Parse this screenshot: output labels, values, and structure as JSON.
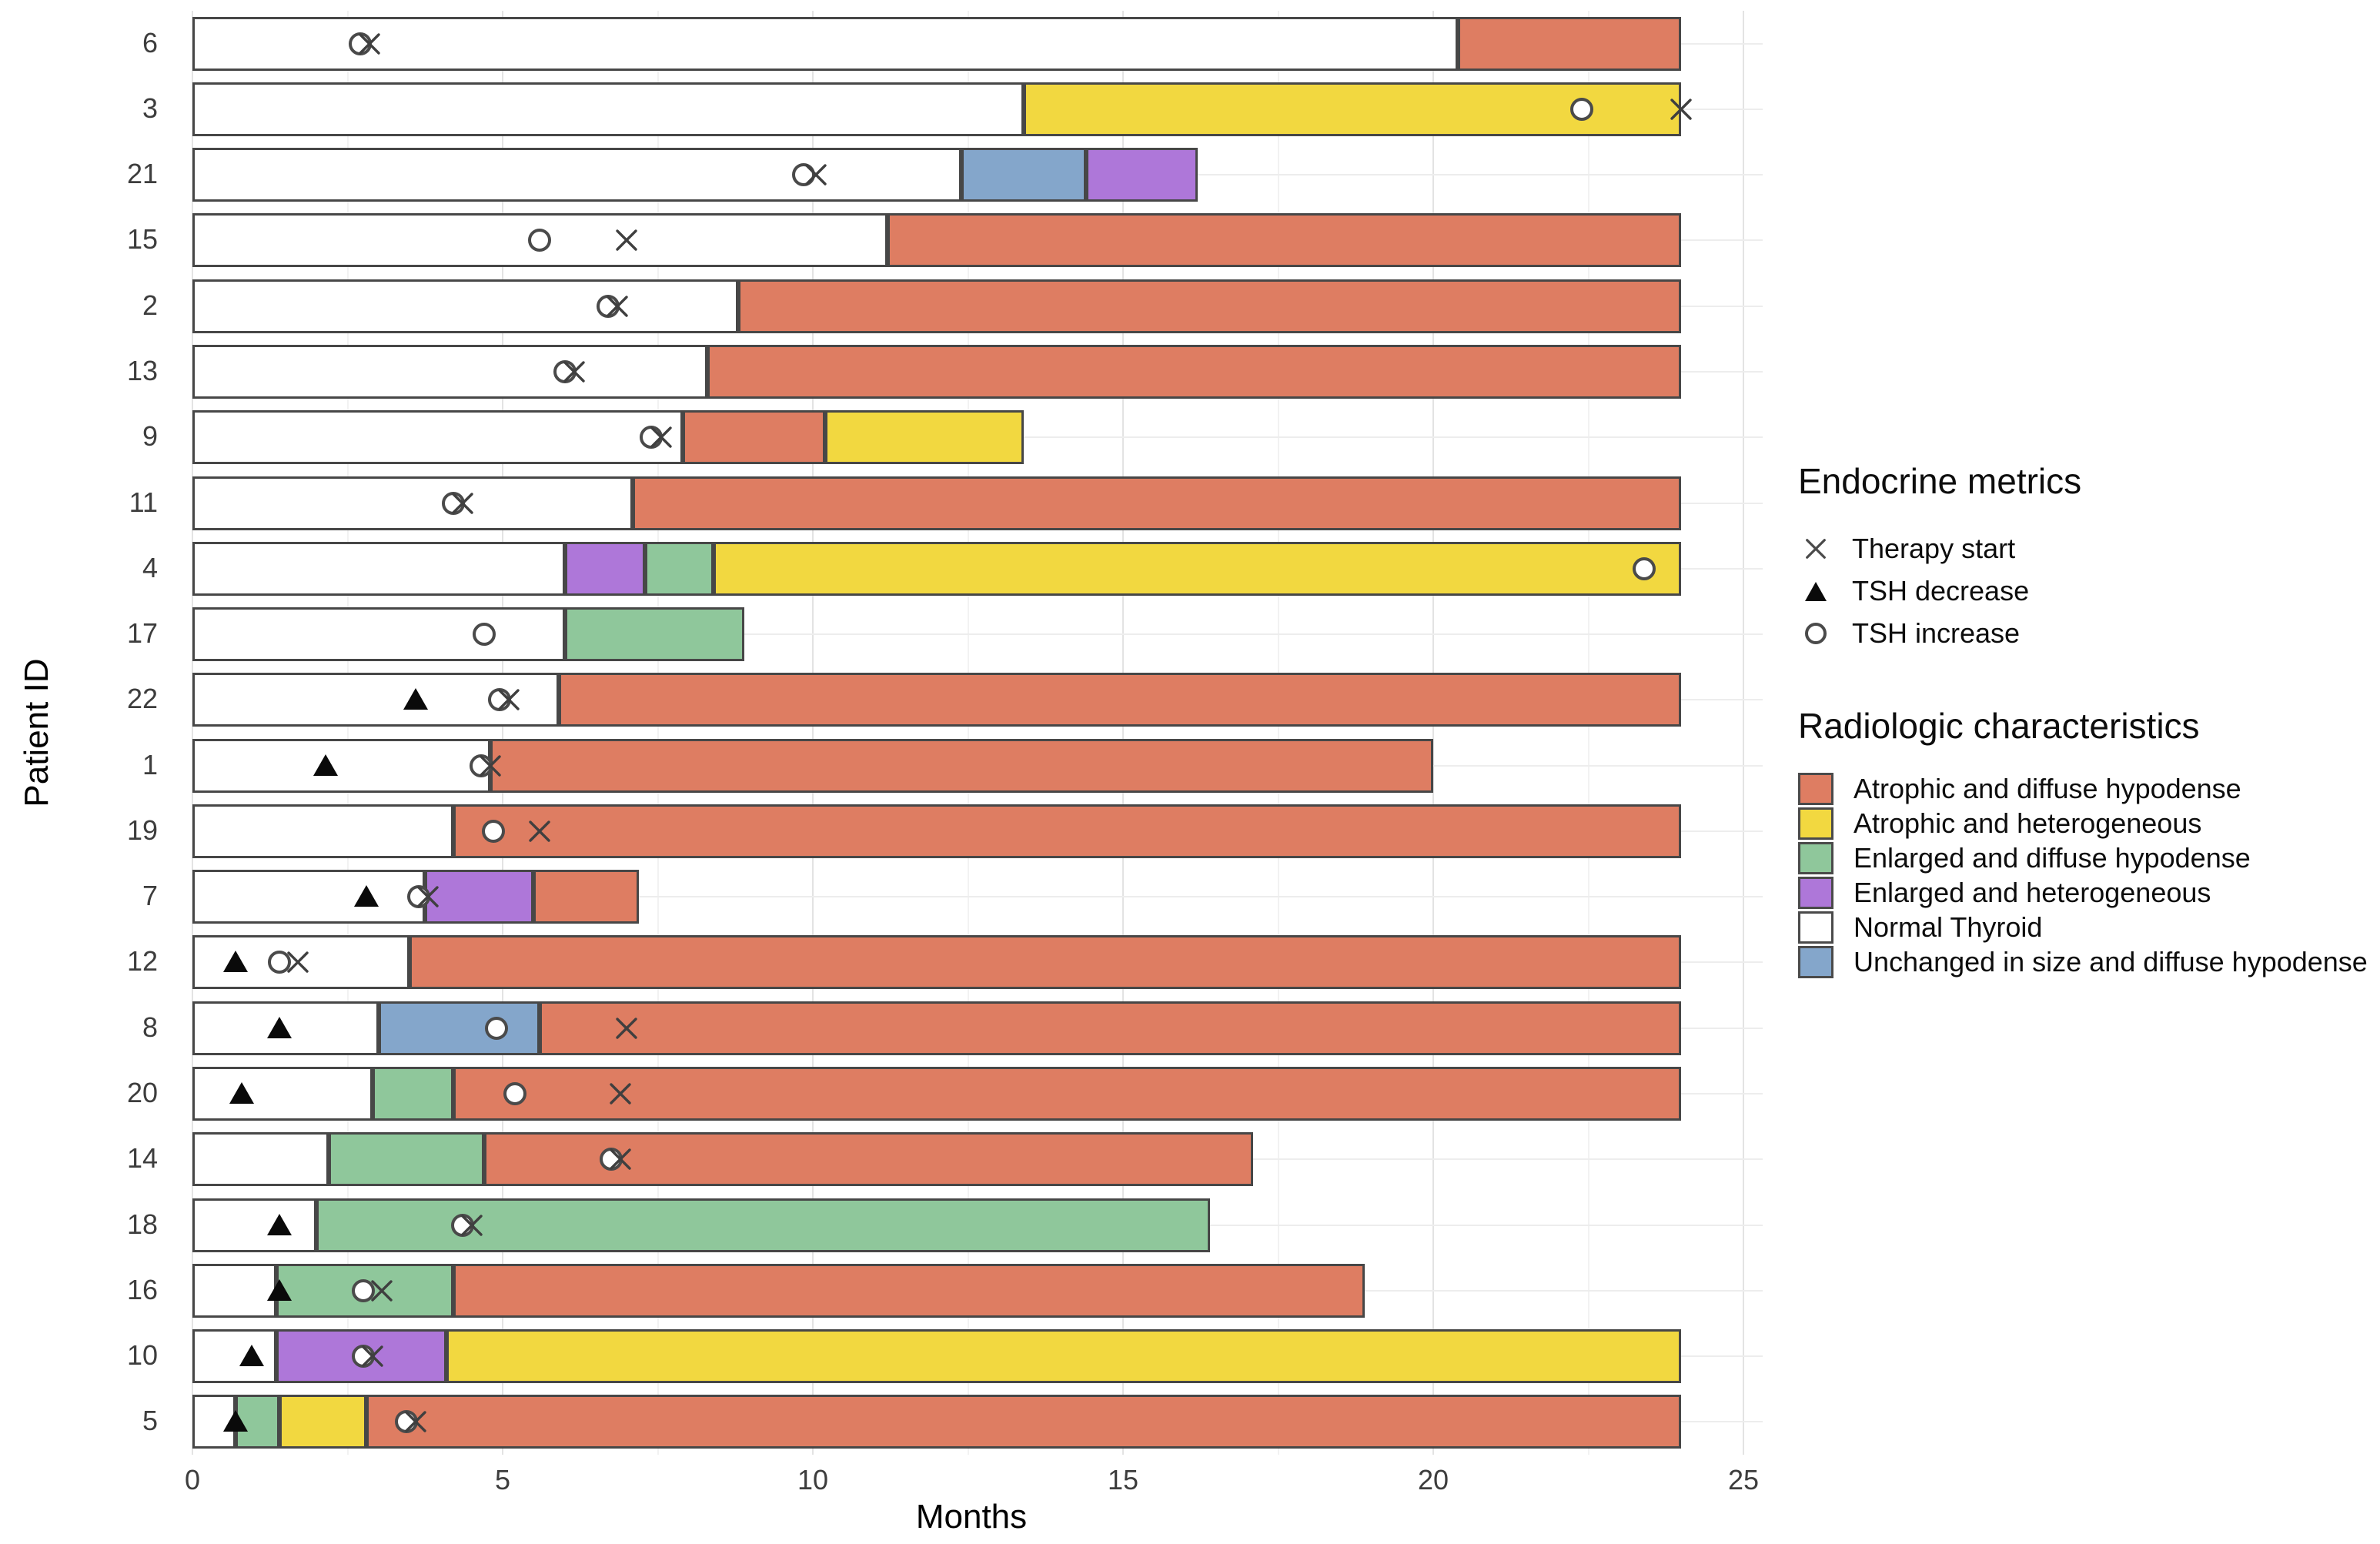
{
  "legend_endocrine": {
    "title": "Endocrine metrics",
    "items": [
      {
        "symbol": "x",
        "label": "Therapy start"
      },
      {
        "symbol": "triangle",
        "label": "TSH decrease"
      },
      {
        "symbol": "circle",
        "label": "TSH increase"
      }
    ]
  },
  "legend_radiologic": {
    "title": "Radiologic characteristics",
    "items": [
      {
        "key": "atrophic_diffuse",
        "label": "Atrophic and diffuse hypodense"
      },
      {
        "key": "atrophic_hetero",
        "label": "Atrophic and heterogeneous"
      },
      {
        "key": "enlarged_diffuse",
        "label": "Enlarged and diffuse hypodense"
      },
      {
        "key": "enlarged_hetero",
        "label": "Enlarged and heterogeneous"
      },
      {
        "key": "normal",
        "label": "Normal Thyroid"
      },
      {
        "key": "unchanged_diffuse",
        "label": "Unchanged in size and diffuse hypodense"
      }
    ]
  },
  "chart_data": {
    "type": "bar",
    "variant": "horizontal_stacked_swimmer",
    "title": "",
    "xlabel": "Months",
    "ylabel": "Patient ID",
    "xlim": [
      0,
      25.3
    ],
    "xticks": [
      0,
      5,
      10,
      15,
      20,
      25
    ],
    "minor_tick_step": 2.5,
    "grid": true,
    "legend_position": "right",
    "colors": {
      "atrophic_diffuse": "#DE7D62",
      "atrophic_hetero": "#F2D840",
      "enlarged_diffuse": "#8FC79B",
      "enlarged_hetero": "#AE77D9",
      "normal": "#FFFFFF",
      "unchanged_diffuse": "#84A6CB"
    },
    "marker_types": {
      "therapy_start": "x-cross",
      "tsh_decrease": "filled-black-triangle",
      "tsh_increase": "open-white-circle"
    },
    "patients": [
      {
        "id": "6",
        "segments": [
          {
            "k": "normal",
            "s": 0,
            "e": 20.4
          },
          {
            "k": "atrophic_diffuse",
            "s": 20.4,
            "e": 24
          }
        ],
        "markers": [
          {
            "t": "tsh_increase",
            "x": 2.7
          },
          {
            "t": "therapy_start",
            "x": 2.85
          }
        ]
      },
      {
        "id": "3",
        "segments": [
          {
            "k": "normal",
            "s": 0,
            "e": 13.4
          },
          {
            "k": "atrophic_hetero",
            "s": 13.4,
            "e": 24
          }
        ],
        "markers": [
          {
            "t": "tsh_increase",
            "x": 22.4
          },
          {
            "t": "therapy_start",
            "x": 24
          }
        ]
      },
      {
        "id": "21",
        "segments": [
          {
            "k": "normal",
            "s": 0,
            "e": 12.4
          },
          {
            "k": "unchanged_diffuse",
            "s": 12.4,
            "e": 14.4
          },
          {
            "k": "enlarged_hetero",
            "s": 14.4,
            "e": 16.2
          }
        ],
        "markers": [
          {
            "t": "tsh_increase",
            "x": 9.85
          },
          {
            "t": "therapy_start",
            "x": 10.05
          }
        ]
      },
      {
        "id": "15",
        "segments": [
          {
            "k": "normal",
            "s": 0,
            "e": 11.2
          },
          {
            "k": "atrophic_diffuse",
            "s": 11.2,
            "e": 24
          }
        ],
        "markers": [
          {
            "t": "tsh_increase",
            "x": 5.6
          },
          {
            "t": "therapy_start",
            "x": 7.0
          }
        ]
      },
      {
        "id": "2",
        "segments": [
          {
            "k": "normal",
            "s": 0,
            "e": 8.8
          },
          {
            "k": "atrophic_diffuse",
            "s": 8.8,
            "e": 24
          }
        ],
        "markers": [
          {
            "t": "tsh_increase",
            "x": 6.7
          },
          {
            "t": "therapy_start",
            "x": 6.85
          }
        ]
      },
      {
        "id": "13",
        "segments": [
          {
            "k": "normal",
            "s": 0,
            "e": 8.3
          },
          {
            "k": "atrophic_diffuse",
            "s": 8.3,
            "e": 24
          }
        ],
        "markers": [
          {
            "t": "tsh_increase",
            "x": 6.0
          },
          {
            "t": "therapy_start",
            "x": 6.15
          }
        ]
      },
      {
        "id": "9",
        "segments": [
          {
            "k": "normal",
            "s": 0,
            "e": 7.9
          },
          {
            "k": "atrophic_diffuse",
            "s": 7.9,
            "e": 10.2
          },
          {
            "k": "atrophic_hetero",
            "s": 10.2,
            "e": 13.4
          }
        ],
        "markers": [
          {
            "t": "tsh_increase",
            "x": 7.4
          },
          {
            "t": "therapy_start",
            "x": 7.55
          }
        ]
      },
      {
        "id": "11",
        "segments": [
          {
            "k": "normal",
            "s": 0,
            "e": 7.1
          },
          {
            "k": "atrophic_diffuse",
            "s": 7.1,
            "e": 24
          }
        ],
        "markers": [
          {
            "t": "tsh_increase",
            "x": 4.2
          },
          {
            "t": "therapy_start",
            "x": 4.35
          }
        ]
      },
      {
        "id": "4",
        "segments": [
          {
            "k": "normal",
            "s": 0,
            "e": 6.0
          },
          {
            "k": "enlarged_hetero",
            "s": 6.0,
            "e": 7.3
          },
          {
            "k": "enlarged_diffuse",
            "s": 7.3,
            "e": 8.4
          },
          {
            "k": "atrophic_hetero",
            "s": 8.4,
            "e": 24
          }
        ],
        "markers": [
          {
            "t": "tsh_increase",
            "x": 23.4
          }
        ]
      },
      {
        "id": "17",
        "segments": [
          {
            "k": "normal",
            "s": 0,
            "e": 6.0
          },
          {
            "k": "enlarged_diffuse",
            "s": 6.0,
            "e": 8.9
          }
        ],
        "markers": [
          {
            "t": "tsh_increase",
            "x": 4.7
          }
        ]
      },
      {
        "id": "22",
        "segments": [
          {
            "k": "normal",
            "s": 0,
            "e": 5.9
          },
          {
            "k": "atrophic_diffuse",
            "s": 5.9,
            "e": 24
          }
        ],
        "markers": [
          {
            "t": "tsh_decrease",
            "x": 3.6
          },
          {
            "t": "tsh_increase",
            "x": 4.95
          },
          {
            "t": "therapy_start",
            "x": 5.1
          }
        ]
      },
      {
        "id": "1",
        "segments": [
          {
            "k": "normal",
            "s": 0,
            "e": 4.8
          },
          {
            "k": "atrophic_diffuse",
            "s": 4.8,
            "e": 20.0
          }
        ],
        "markers": [
          {
            "t": "tsh_decrease",
            "x": 2.15
          },
          {
            "t": "tsh_increase",
            "x": 4.65
          },
          {
            "t": "therapy_start",
            "x": 4.8
          }
        ]
      },
      {
        "id": "19",
        "segments": [
          {
            "k": "normal",
            "s": 0,
            "e": 4.2
          },
          {
            "k": "atrophic_diffuse",
            "s": 4.2,
            "e": 24
          }
        ],
        "markers": [
          {
            "t": "tsh_increase",
            "x": 4.85
          },
          {
            "t": "therapy_start",
            "x": 5.6
          }
        ]
      },
      {
        "id": "7",
        "segments": [
          {
            "k": "normal",
            "s": 0,
            "e": 3.75
          },
          {
            "k": "enlarged_hetero",
            "s": 3.75,
            "e": 5.5
          },
          {
            "k": "atrophic_diffuse",
            "s": 5.5,
            "e": 7.2
          }
        ],
        "markers": [
          {
            "t": "tsh_decrease",
            "x": 2.8
          },
          {
            "t": "tsh_increase",
            "x": 3.65
          },
          {
            "t": "therapy_start",
            "x": 3.8
          }
        ]
      },
      {
        "id": "12",
        "segments": [
          {
            "k": "normal",
            "s": 0,
            "e": 3.5
          },
          {
            "k": "atrophic_diffuse",
            "s": 3.5,
            "e": 24
          }
        ],
        "markers": [
          {
            "t": "tsh_decrease",
            "x": 0.7
          },
          {
            "t": "tsh_increase",
            "x": 1.4
          },
          {
            "t": "therapy_start",
            "x": 1.7
          }
        ]
      },
      {
        "id": "8",
        "segments": [
          {
            "k": "normal",
            "s": 0,
            "e": 3.0
          },
          {
            "k": "unchanged_diffuse",
            "s": 3.0,
            "e": 5.6
          },
          {
            "k": "atrophic_diffuse",
            "s": 5.6,
            "e": 24
          }
        ],
        "markers": [
          {
            "t": "tsh_decrease",
            "x": 1.4
          },
          {
            "t": "tsh_increase",
            "x": 4.9
          },
          {
            "t": "therapy_start",
            "x": 7.0
          }
        ]
      },
      {
        "id": "20",
        "segments": [
          {
            "k": "normal",
            "s": 0,
            "e": 2.9
          },
          {
            "k": "enlarged_diffuse",
            "s": 2.9,
            "e": 4.2
          },
          {
            "k": "atrophic_diffuse",
            "s": 4.2,
            "e": 24
          }
        ],
        "markers": [
          {
            "t": "tsh_decrease",
            "x": 0.8
          },
          {
            "t": "tsh_increase",
            "x": 5.2
          },
          {
            "t": "therapy_start",
            "x": 6.9
          }
        ]
      },
      {
        "id": "14",
        "segments": [
          {
            "k": "normal",
            "s": 0,
            "e": 2.2
          },
          {
            "k": "enlarged_diffuse",
            "s": 2.2,
            "e": 4.7
          },
          {
            "k": "atrophic_diffuse",
            "s": 4.7,
            "e": 17.1
          }
        ],
        "markers": [
          {
            "t": "tsh_increase",
            "x": 6.75
          },
          {
            "t": "therapy_start",
            "x": 6.9
          }
        ]
      },
      {
        "id": "18",
        "segments": [
          {
            "k": "normal",
            "s": 0,
            "e": 2.0
          },
          {
            "k": "enlarged_diffuse",
            "s": 2.0,
            "e": 16.4
          }
        ],
        "markers": [
          {
            "t": "tsh_decrease",
            "x": 1.4
          },
          {
            "t": "tsh_increase",
            "x": 4.35
          },
          {
            "t": "therapy_start",
            "x": 4.5
          }
        ]
      },
      {
        "id": "16",
        "segments": [
          {
            "k": "normal",
            "s": 0,
            "e": 1.35
          },
          {
            "k": "enlarged_diffuse",
            "s": 1.35,
            "e": 4.2
          },
          {
            "k": "atrophic_diffuse",
            "s": 4.2,
            "e": 18.9
          }
        ],
        "markers": [
          {
            "t": "tsh_decrease",
            "x": 1.4
          },
          {
            "t": "tsh_increase",
            "x": 2.75
          },
          {
            "t": "therapy_start",
            "x": 3.05
          }
        ]
      },
      {
        "id": "10",
        "segments": [
          {
            "k": "normal",
            "s": 0,
            "e": 1.35
          },
          {
            "k": "enlarged_hetero",
            "s": 1.35,
            "e": 4.1
          },
          {
            "k": "atrophic_hetero",
            "s": 4.1,
            "e": 24
          }
        ],
        "markers": [
          {
            "t": "tsh_decrease",
            "x": 0.95
          },
          {
            "t": "tsh_increase",
            "x": 2.75
          },
          {
            "t": "therapy_start",
            "x": 2.9
          }
        ]
      },
      {
        "id": "5",
        "segments": [
          {
            "k": "normal",
            "s": 0,
            "e": 0.7
          },
          {
            "k": "enlarged_diffuse",
            "s": 0.7,
            "e": 1.4
          },
          {
            "k": "atrophic_hetero",
            "s": 1.4,
            "e": 2.8
          },
          {
            "k": "atrophic_diffuse",
            "s": 2.8,
            "e": 24
          }
        ],
        "markers": [
          {
            "t": "tsh_decrease",
            "x": 0.7
          },
          {
            "t": "tsh_increase",
            "x": 3.45
          },
          {
            "t": "therapy_start",
            "x": 3.6
          }
        ]
      }
    ]
  }
}
